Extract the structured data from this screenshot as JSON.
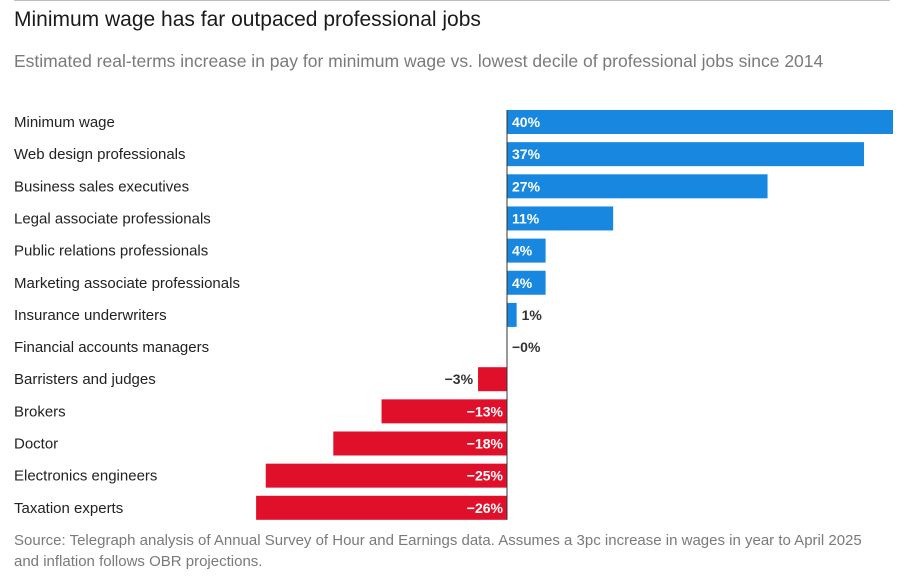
{
  "header": {
    "title": "Minimum wage has far outpaced professional jobs",
    "subtitle": "Estimated real-terms increase in pay for minimum wage vs. lowest decile of professional jobs since 2014"
  },
  "footer": {
    "source": "Source: Telegraph analysis of Annual Survey of Hour and Earnings data. Assumes a 3pc increase in wages in year to April 2025 and inflation follows OBR projections."
  },
  "colors": {
    "positive": "#1787e0",
    "negative": "#e0102b",
    "label_inside": "#ffffff",
    "label_outside": "#333333",
    "axis": "#333333"
  },
  "chart_data": {
    "type": "bar",
    "orientation": "horizontal",
    "title": "Minimum wage has far outpaced professional jobs",
    "xlabel": "",
    "ylabel": "",
    "unit": "%",
    "xlim": [
      -26,
      40
    ],
    "categories": [
      "Minimum wage",
      "Web design professionals",
      "Business sales executives",
      "Legal associate professionals",
      "Public relations professionals",
      "Marketing associate professionals",
      "Insurance underwriters",
      "Financial accounts managers",
      "Barristers and judges",
      "Brokers",
      "Doctor",
      "Electronics engineers",
      "Taxation experts"
    ],
    "values": [
      40,
      37,
      27,
      11,
      4,
      4,
      1,
      0,
      -3,
      -13,
      -18,
      -25,
      -26
    ],
    "value_labels": [
      "40%",
      "37%",
      "27%",
      "11%",
      "4%",
      "4%",
      "1%",
      "−0%",
      "−3%",
      "−13%",
      "−18%",
      "−25%",
      "−26%"
    ],
    "label_inside": [
      true,
      true,
      true,
      true,
      true,
      true,
      false,
      false,
      false,
      true,
      true,
      true,
      true
    ]
  }
}
